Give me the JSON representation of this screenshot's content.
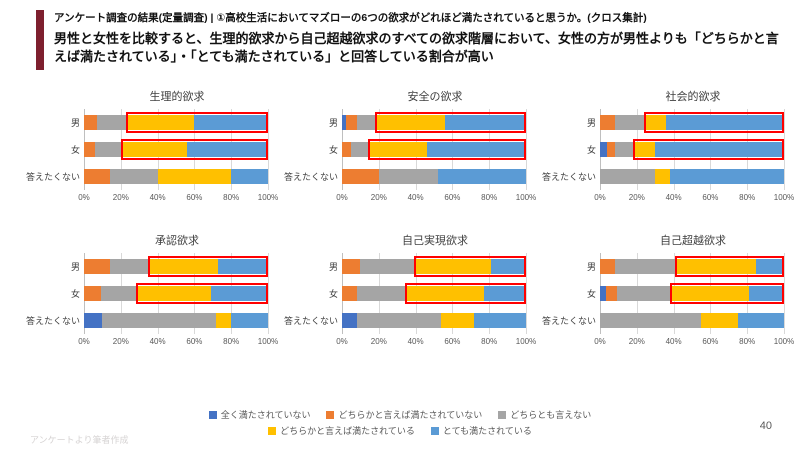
{
  "slide": {
    "header": {
      "kicker": "アンケート調査の結果(定量調査) | ①高校生活においてマズローの6つの欲求がどれほど満たされていると思うか。(クロス集計)",
      "headline": "男性と女性を比較すると、生理的欲求から自己超越欲求のすべての欲求階層において、女性の方が男性よりも「どちらかと言えば満たされている」・「とても満たされている」と回答している割合が高い",
      "accent_color": "#7E1F2E"
    },
    "footer": {
      "source_note": "アンケートより筆者作成",
      "page_number": "40"
    }
  },
  "answer_options": [
    {
      "label": "全く満たされていない",
      "color": "#4472C4"
    },
    {
      "label": "どちらかと言えば満たされていない",
      "color": "#ED7D31"
    },
    {
      "label": "どちらとも言えない",
      "color": "#A5A5A5"
    },
    {
      "label": "どちらかと言えば満たされている",
      "color": "#FFC000"
    },
    {
      "label": "とても満たされている",
      "color": "#5B9BD5"
    }
  ],
  "axis": {
    "ticks": [
      "0%",
      "20%",
      "40%",
      "60%",
      "80%",
      "100%"
    ],
    "min": 0,
    "max": 100,
    "gridlines": true
  },
  "highlight_color": "#FF0000",
  "chart_data": [
    {
      "type": "bar",
      "orientation": "horizontal",
      "stacked": true,
      "unit": "%",
      "title": "生理的欲求",
      "rows": [
        {
          "label": "男",
          "values": [
            0,
            7,
            16,
            37,
            40
          ],
          "highlight": [
            23,
            100
          ]
        },
        {
          "label": "女",
          "values": [
            0,
            6,
            14,
            36,
            44
          ],
          "highlight": [
            20,
            100
          ]
        },
        {
          "label": "答えたくない",
          "values": [
            0,
            14,
            26,
            40,
            20
          ],
          "highlight": null
        }
      ]
    },
    {
      "type": "bar",
      "orientation": "horizontal",
      "stacked": true,
      "unit": "%",
      "title": "安全の欲求",
      "rows": [
        {
          "label": "男",
          "values": [
            2,
            6,
            10,
            38,
            44
          ],
          "highlight": [
            18,
            100
          ]
        },
        {
          "label": "女",
          "values": [
            0,
            5,
            9,
            32,
            54
          ],
          "highlight": [
            14,
            100
          ]
        },
        {
          "label": "答えたくない",
          "values": [
            0,
            20,
            32,
            0,
            48
          ],
          "highlight": null
        }
      ]
    },
    {
      "type": "bar",
      "orientation": "horizontal",
      "stacked": true,
      "unit": "%",
      "title": "社会的欲求",
      "rows": [
        {
          "label": "男",
          "values": [
            0,
            8,
            16,
            12,
            64
          ],
          "highlight": [
            24,
            100
          ]
        },
        {
          "label": "女",
          "values": [
            4,
            4,
            10,
            12,
            70
          ],
          "highlight": [
            18,
            100
          ]
        },
        {
          "label": "答えたくない",
          "values": [
            0,
            0,
            30,
            8,
            62
          ],
          "highlight": null
        }
      ]
    },
    {
      "type": "bar",
      "orientation": "horizontal",
      "stacked": true,
      "unit": "%",
      "title": "承認欲求",
      "rows": [
        {
          "label": "男",
          "values": [
            0,
            14,
            21,
            38,
            27
          ],
          "highlight": [
            35,
            100
          ]
        },
        {
          "label": "女",
          "values": [
            0,
            9,
            19,
            41,
            31
          ],
          "highlight": [
            28,
            100
          ]
        },
        {
          "label": "答えたくない",
          "values": [
            10,
            0,
            62,
            8,
            20
          ],
          "highlight": null
        }
      ]
    },
    {
      "type": "bar",
      "orientation": "horizontal",
      "stacked": true,
      "unit": "%",
      "title": "自己実現欲求",
      "rows": [
        {
          "label": "男",
          "values": [
            0,
            10,
            29,
            42,
            19
          ],
          "highlight": [
            39,
            100
          ]
        },
        {
          "label": "女",
          "values": [
            0,
            8,
            26,
            43,
            23
          ],
          "highlight": [
            34,
            100
          ]
        },
        {
          "label": "答えたくない",
          "values": [
            8,
            0,
            46,
            18,
            28
          ],
          "highlight": null
        }
      ]
    },
    {
      "type": "bar",
      "orientation": "horizontal",
      "stacked": true,
      "unit": "%",
      "title": "自己超越欲求",
      "rows": [
        {
          "label": "男",
          "values": [
            0,
            8,
            33,
            44,
            15
          ],
          "highlight": [
            41,
            100
          ]
        },
        {
          "label": "女",
          "values": [
            3,
            6,
            29,
            43,
            19
          ],
          "highlight": [
            38,
            100
          ]
        },
        {
          "label": "答えたくない",
          "values": [
            0,
            0,
            55,
            20,
            25
          ],
          "highlight": null
        }
      ]
    }
  ]
}
